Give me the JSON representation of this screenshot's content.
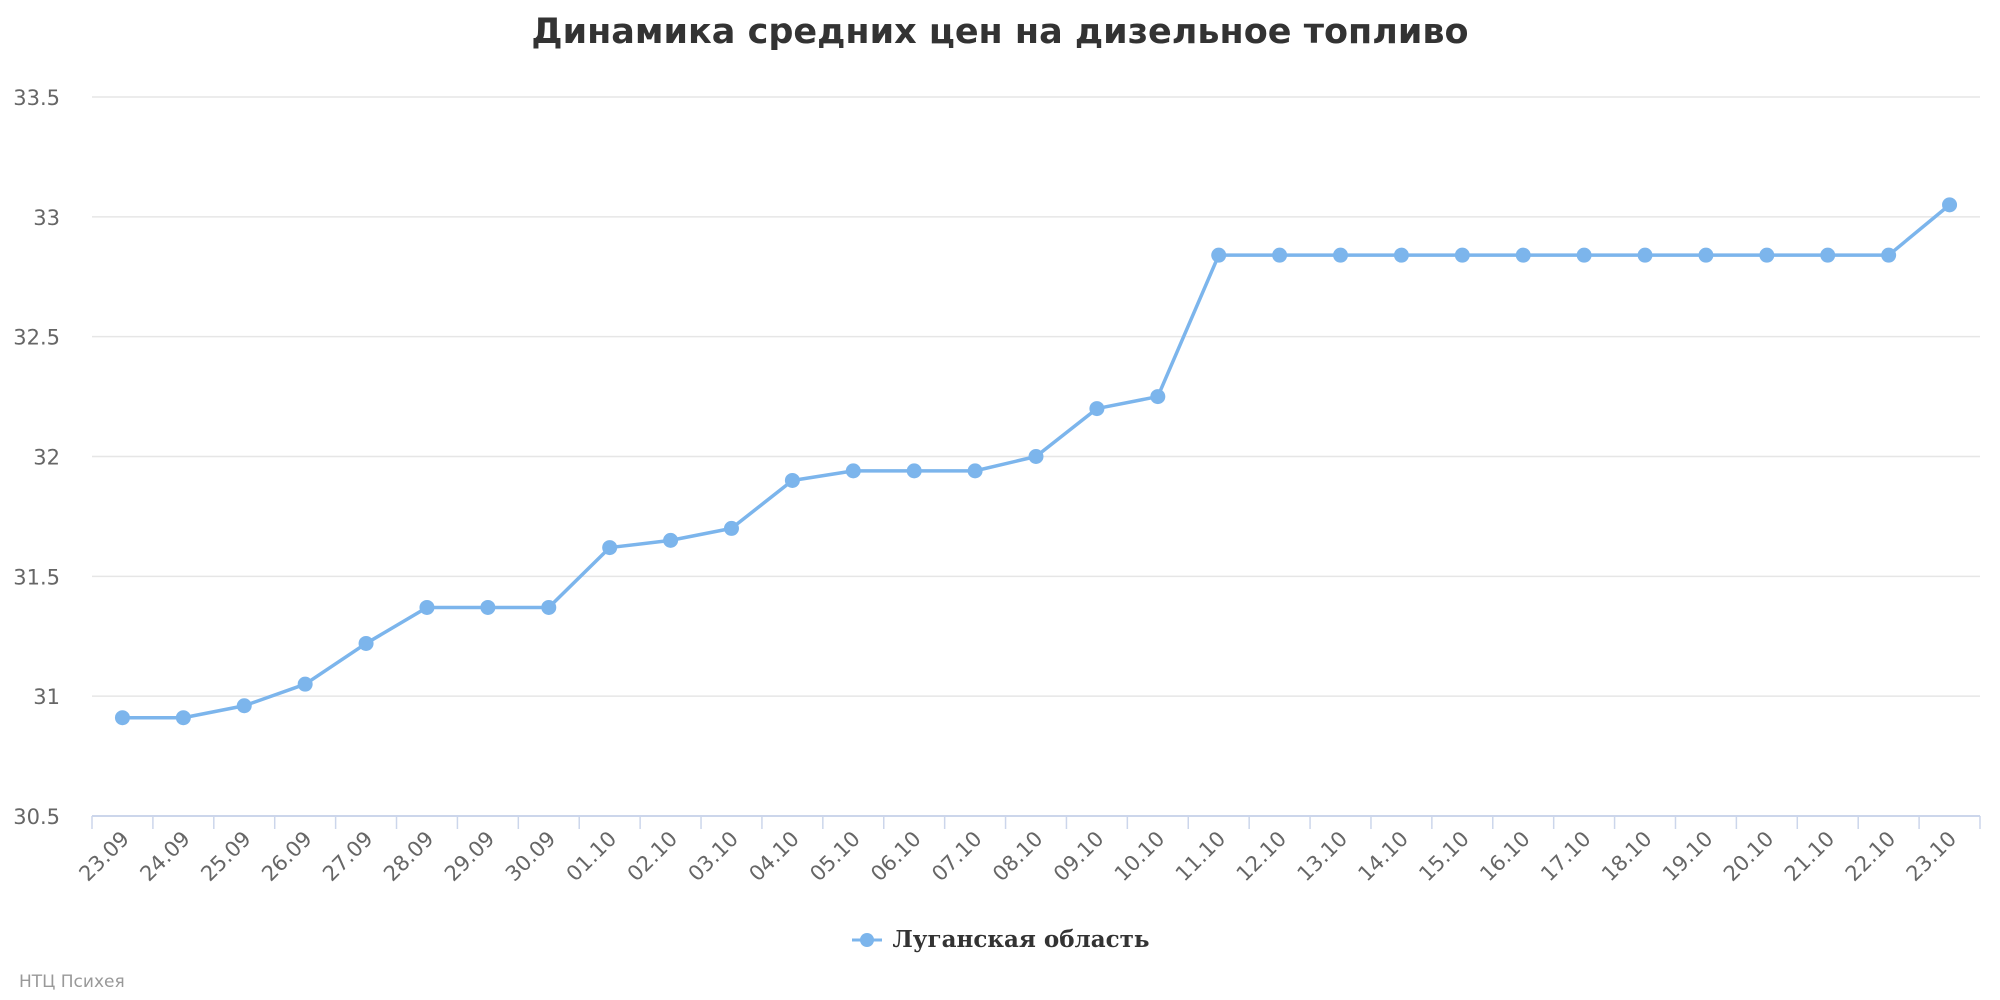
{
  "chart_data": {
    "type": "line",
    "title": "Динамика средних цен на дизельное топливо",
    "xlabel": "",
    "ylabel": "",
    "ylim": [
      30.5,
      33.5
    ],
    "yticks": [
      "30.5",
      "31",
      "31.5",
      "32",
      "32.5",
      "33",
      "33.5"
    ],
    "grid": true,
    "legend_position": "bottom",
    "categories": [
      "23.09",
      "24.09",
      "25.09",
      "26.09",
      "27.09",
      "28.09",
      "29.09",
      "30.09",
      "01.10",
      "02.10",
      "03.10",
      "04.10",
      "05.10",
      "06.10",
      "07.10",
      "08.10",
      "09.10",
      "10.10",
      "11.10",
      "12.10",
      "13.10",
      "14.10",
      "15.10",
      "16.10",
      "17.10",
      "18.10",
      "19.10",
      "20.10",
      "21.10",
      "22.10",
      "23.10"
    ],
    "series": [
      {
        "name": "Луганская область",
        "color": "#7cb5ec",
        "values": [
          30.91,
          30.91,
          30.96,
          31.05,
          31.22,
          31.37,
          31.37,
          31.37,
          31.62,
          31.65,
          31.7,
          31.9,
          31.94,
          31.94,
          31.94,
          32.0,
          32.2,
          32.25,
          32.84,
          32.84,
          32.84,
          32.84,
          32.84,
          32.84,
          32.84,
          32.84,
          32.84,
          32.84,
          32.84,
          32.84,
          33.05
        ]
      }
    ]
  },
  "credit": "НТЦ Психея"
}
